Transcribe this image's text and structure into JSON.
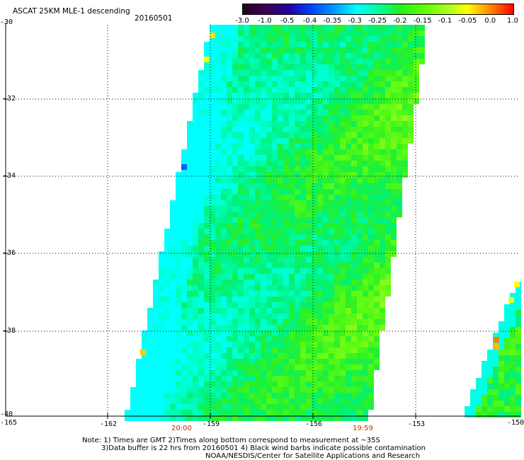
{
  "title": "ASCAT 25KM MLE-1 descending",
  "date": "20160501",
  "colorbar": {
    "labels": [
      "-3.0",
      "-1.0",
      "-0.5",
      "-0.4",
      "-0.35",
      "-0.3",
      "-0.25",
      "-0.2",
      "-0.15",
      "-0.1",
      "-0.05",
      "0.0",
      "1.0"
    ],
    "colors": [
      "#200020",
      "#400050",
      "#2000a0",
      "#0040ff",
      "#0090ff",
      "#00ffff",
      "#00ffa0",
      "#20f020",
      "#60ff00",
      "#a0ff20",
      "#ffff00",
      "#ff8000",
      "#ff0000"
    ]
  },
  "axes": {
    "lat_labels": [
      "-30",
      "-32",
      "-34",
      "-36",
      "-38",
      "-40"
    ],
    "lon_labels": [
      "-165",
      "-162",
      "-159",
      "-156",
      "-153",
      "-150"
    ]
  },
  "times": {
    "left": "20:00",
    "right": "19:59"
  },
  "notes": {
    "line1": "Note: 1) Times are GMT 2)Times along bottom correspond to measurement at ~35S",
    "line2": "3)Data buffer is 22 hrs from 20160501 4) Black wind barbs indicate possible contamination",
    "line3": "NOAA/NESDIS/Center for Satellite Applications and Research"
  }
}
